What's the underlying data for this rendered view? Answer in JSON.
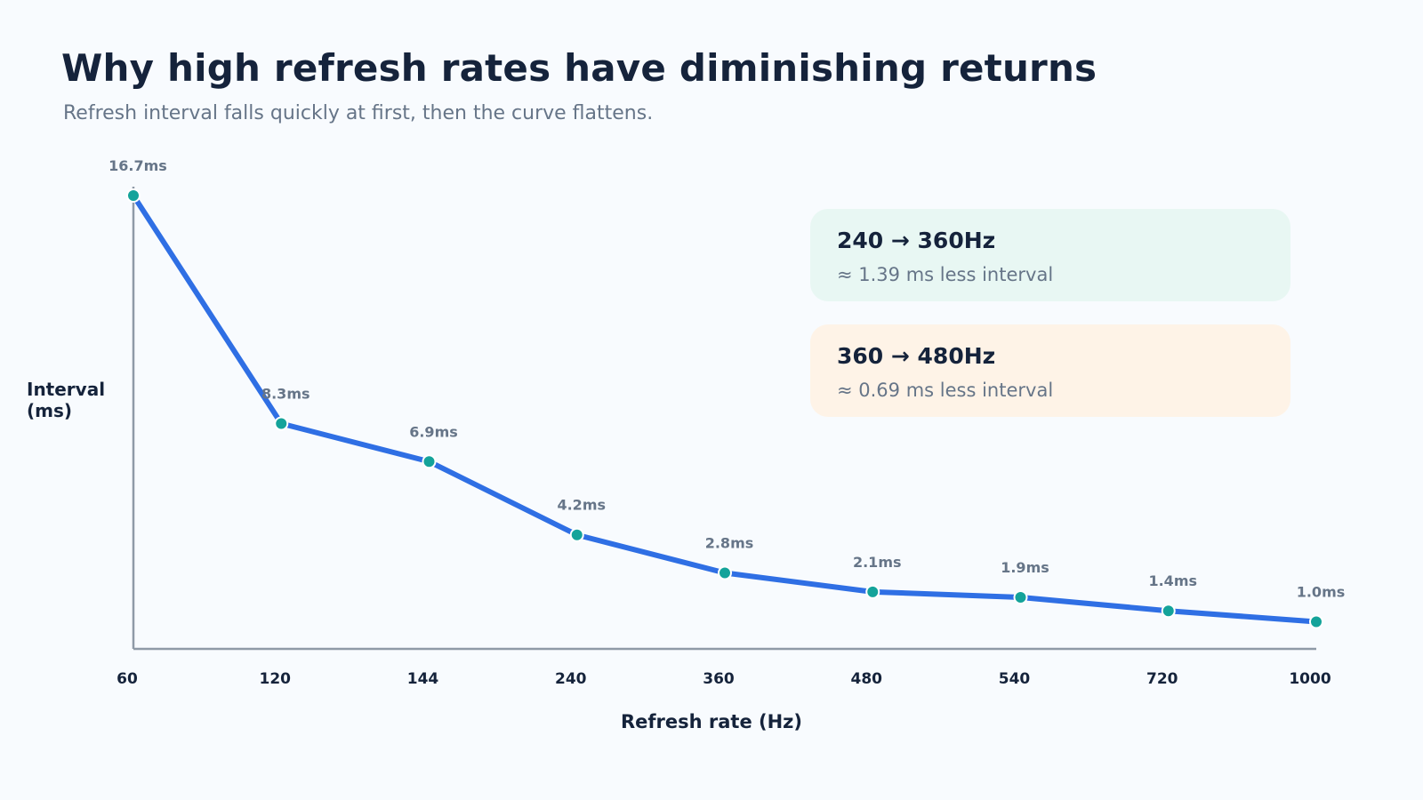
{
  "title": "Why high refresh rates have diminishing returns",
  "subtitle": "Refresh interval falls quickly at first, then the curve flattens.",
  "colors": {
    "line": "#2f6fe4",
    "point": "#14a39a",
    "axis": "#8f9aa7",
    "note_green_bg": "#e8f7f3",
    "note_orange_bg": "#fef3e7"
  },
  "notes": [
    {
      "title": "240 → 360Hz",
      "detail": "≈ 1.39 ms less interval"
    },
    {
      "title": "360 → 480Hz",
      "detail": "≈ 0.69 ms less interval"
    }
  ],
  "chart_data": {
    "type": "line",
    "xlabel": "Refresh rate (Hz)",
    "ylabel": "Interval (ms)",
    "categories": [
      "60",
      "120",
      "144",
      "240",
      "360",
      "480",
      "540",
      "720",
      "1000"
    ],
    "values": [
      16.7,
      8.3,
      6.9,
      4.2,
      2.8,
      2.1,
      1.9,
      1.4,
      1.0
    ],
    "data_labels": [
      "16.7ms",
      "8.3ms",
      "6.9ms",
      "4.2ms",
      "2.8ms",
      "2.1ms",
      "1.9ms",
      "1.4ms",
      "1.0ms"
    ],
    "ylim": [
      0,
      16.7
    ],
    "grid": false,
    "legend": "none"
  }
}
